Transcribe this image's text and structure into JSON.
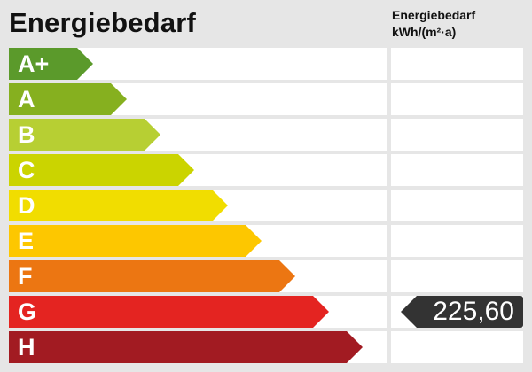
{
  "title": "Energiebedarf",
  "column_title_line1": "Energiebedarf",
  "column_title_line2": "kWh/(m²·a)",
  "chart_data": {
    "type": "energy-label",
    "title": "Energiebedarf",
    "unit": "kWh/(m²·a)",
    "classes": [
      {
        "label": "A+",
        "color": "#5b9a2b"
      },
      {
        "label": "A",
        "color": "#86b01f"
      },
      {
        "label": "B",
        "color": "#b7cf33"
      },
      {
        "label": "C",
        "color": "#cbd400"
      },
      {
        "label": "D",
        "color": "#f1dd00"
      },
      {
        "label": "E",
        "color": "#fdc700"
      },
      {
        "label": "F",
        "color": "#ec7612"
      },
      {
        "label": "G",
        "color": "#e42421"
      },
      {
        "label": "H",
        "color": "#a21b22"
      }
    ],
    "value": "225,60",
    "value_class": "G",
    "marker_color": "#333333"
  }
}
